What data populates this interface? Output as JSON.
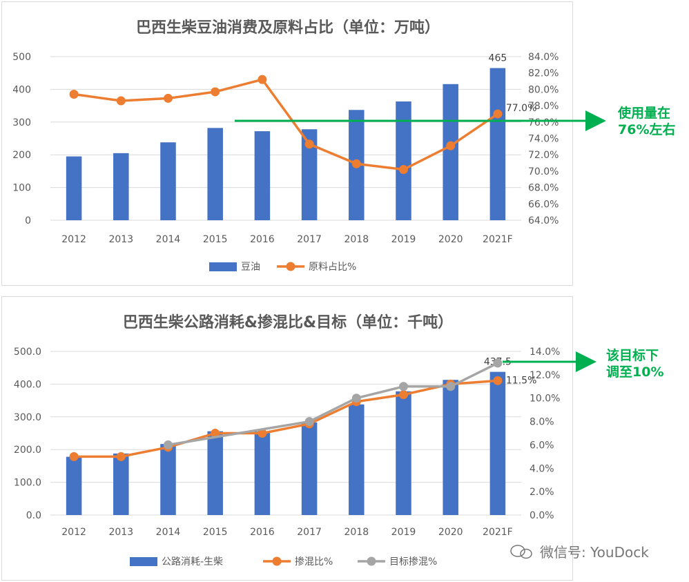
{
  "charts": [
    {
      "type": "bar+line",
      "title": "巴西生柴豆油消费及原料占比（单位：万吨）",
      "categories": [
        "2012",
        "2013",
        "2014",
        "2015",
        "2016",
        "2017",
        "2018",
        "2019",
        "2020",
        "2021F"
      ],
      "y_left": {
        "min": 0,
        "max": 500,
        "ticks": [
          "0",
          "100",
          "200",
          "300",
          "400",
          "500"
        ]
      },
      "y_right": {
        "min": 64,
        "max": 84,
        "ticks": [
          "64.0%",
          "66.0%",
          "68.0%",
          "70.0%",
          "72.0%",
          "74.0%",
          "76.0%",
          "78.0%",
          "80.0%",
          "82.0%",
          "84.0%"
        ]
      },
      "bar_series": {
        "name": "豆油",
        "color": "#4472c4",
        "values": [
          195,
          205,
          238,
          282,
          272,
          278,
          337,
          363,
          416,
          465
        ],
        "label": "465"
      },
      "line_series": [
        {
          "name": "原料占比%",
          "color": "#ed7d31",
          "values": [
            79.4,
            78.6,
            78.9,
            79.7,
            81.2,
            73.3,
            70.9,
            70.2,
            73.1,
            77.0
          ],
          "label": "77.0%",
          "axis": "right"
        }
      ],
      "annotation": {
        "line1": "使用量在",
        "line2": "76%左右"
      }
    },
    {
      "type": "bar+line",
      "title": "巴西生柴公路消耗&掺混比&目标（单位：千吨）",
      "categories": [
        "2012",
        "2013",
        "2014",
        "2015",
        "2016",
        "2017",
        "2018",
        "2019",
        "2020",
        "2021F"
      ],
      "y_left": {
        "min": 0,
        "max": 500,
        "ticks": [
          "0.0",
          "100.0",
          "200.0",
          "300.0",
          "400.0",
          "500.0"
        ]
      },
      "y_right": {
        "min": 0,
        "max": 14,
        "ticks": [
          "0.0%",
          "2.0%",
          "4.0%",
          "6.0%",
          "8.0%",
          "10.0%",
          "12.0%",
          "14.0%"
        ]
      },
      "bar_series": {
        "name": "公路消耗-生柴",
        "color": "#4472c4",
        "values": [
          178,
          188,
          217,
          256,
          255,
          283,
          338,
          378,
          413,
          437.5
        ],
        "label": "437.5"
      },
      "line_series": [
        {
          "name": "掺混比%",
          "color": "#ed7d31",
          "values": [
            5.0,
            5.0,
            5.8,
            7.0,
            7.0,
            7.8,
            9.7,
            10.3,
            11.2,
            11.5
          ],
          "label": "11.5%",
          "axis": "right"
        },
        {
          "name": "目标掺混%",
          "color": "#a5a5a5",
          "values": [
            null,
            null,
            6.0,
            null,
            null,
            8.0,
            10.0,
            11.0,
            11.0,
            13.0
          ],
          "label": "",
          "axis": "right"
        }
      ],
      "annotation": {
        "line1": "该目标下",
        "line2": "调至10%"
      }
    }
  ],
  "watermark": "微信号: YouDock",
  "chart_data": [
    {
      "type": "bar",
      "title": "巴西生柴豆油消费及原料占比（单位：万吨）",
      "categories": [
        "2012",
        "2013",
        "2014",
        "2015",
        "2016",
        "2017",
        "2018",
        "2019",
        "2020",
        "2021F"
      ],
      "series": [
        {
          "name": "豆油",
          "type": "bar",
          "values": [
            195,
            205,
            238,
            282,
            272,
            278,
            337,
            363,
            416,
            465
          ]
        },
        {
          "name": "原料占比%",
          "type": "line",
          "axis": "right",
          "values": [
            79.4,
            78.6,
            78.9,
            79.7,
            81.2,
            73.3,
            70.9,
            70.2,
            73.1,
            77.0
          ]
        }
      ],
      "ylim": [
        0,
        500
      ],
      "ylim_right": [
        64,
        84
      ],
      "legend": "bottom",
      "grid": true
    },
    {
      "type": "bar",
      "title": "巴西生柴公路消耗&掺混比&目标（单位：千吨）",
      "categories": [
        "2012",
        "2013",
        "2014",
        "2015",
        "2016",
        "2017",
        "2018",
        "2019",
        "2020",
        "2021F"
      ],
      "series": [
        {
          "name": "公路消耗-生柴",
          "type": "bar",
          "values": [
            178,
            188,
            217,
            256,
            255,
            283,
            338,
            378,
            413,
            437.5
          ]
        },
        {
          "name": "掺混比%",
          "type": "line",
          "axis": "right",
          "values": [
            5.0,
            5.0,
            5.8,
            7.0,
            7.0,
            7.8,
            9.7,
            10.3,
            11.2,
            11.5
          ]
        },
        {
          "name": "目标掺混%",
          "type": "line",
          "axis": "right",
          "values": [
            null,
            null,
            6.0,
            null,
            null,
            8.0,
            10.0,
            11.0,
            11.0,
            13.0
          ]
        }
      ],
      "ylim": [
        0,
        500
      ],
      "ylim_right": [
        0,
        14
      ],
      "legend": "bottom",
      "grid": true
    }
  ]
}
